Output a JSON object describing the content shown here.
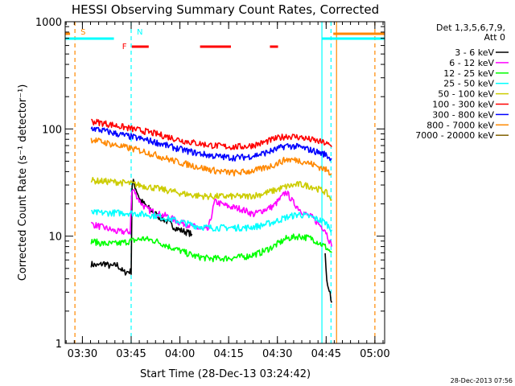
{
  "chart_data": {
    "type": "line",
    "title": "HESSI Observing Summary Count Rates, Corrected",
    "xlabel": "Start Time (28-Dec-13 03:24:42)",
    "ylabel": "Corrected Count Rate (s⁻¹ detector⁻¹)",
    "timestamp": "28-Dec-2013 07:56",
    "x_unit": "minutes after 03:24:42",
    "xlim": [
      0,
      98.3
    ],
    "ylim": [
      1,
      1000
    ],
    "yscale": "log",
    "x_ticks": [
      {
        "label": "03:30",
        "value": 5.3
      },
      {
        "label": "03:45",
        "value": 20.3
      },
      {
        "label": "04:00",
        "value": 35.3
      },
      {
        "label": "04:15",
        "value": 50.3
      },
      {
        "label": "04:30",
        "value": 65.3
      },
      {
        "label": "04:45",
        "value": 80.3
      },
      {
        "label": "05:00",
        "value": 95.3
      }
    ],
    "y_ticks": [
      {
        "label": "1",
        "value": 1
      },
      {
        "label": "10",
        "value": 10
      },
      {
        "label": "100",
        "value": 100
      },
      {
        "label": "1000",
        "value": 1000
      }
    ],
    "legend": {
      "position": "top-right",
      "header": [
        "Det 1,3,5,6,7,9,",
        "Att 0"
      ],
      "entries": [
        {
          "label": "3 - 6 keV",
          "color": "#000000"
        },
        {
          "label": "6 - 12 keV",
          "color": "#ff00ff"
        },
        {
          "label": "12 - 25 keV",
          "color": "#00ff00"
        },
        {
          "label": "25 - 50 keV",
          "color": "#00ffff"
        },
        {
          "label": "50 - 100 keV",
          "color": "#cccc00"
        },
        {
          "label": "100 - 300 keV",
          "color": "#ff0000"
        },
        {
          "label": "300 - 800 keV",
          "color": "#0000ff"
        },
        {
          "label": "800 - 7000 keV",
          "color": "#ff8800"
        },
        {
          "label": "7000 - 20000 keV",
          "color": "#806000"
        }
      ]
    },
    "series": [
      {
        "name": "3 - 6 keV",
        "color": "#000000",
        "x": [
          8,
          10,
          12,
          14,
          16,
          18,
          20.3,
          20.6,
          21,
          23,
          25,
          27,
          29,
          31,
          33,
          35,
          37,
          39
        ],
        "y": [
          5.5,
          5.3,
          5.6,
          5.2,
          5.4,
          4.6,
          4.7,
          30,
          32,
          22,
          19,
          17,
          15,
          14,
          12.5,
          11.5,
          11,
          10.5
        ]
      },
      {
        "name": "3 - 6 keV (late)",
        "color": "#000000",
        "x": [
          80,
          80.5,
          81,
          81.5,
          82
        ],
        "y": [
          6.5,
          3.8,
          3.4,
          3.0,
          2.4
        ]
      },
      {
        "name": "6 - 12 keV",
        "color": "#ff00ff",
        "x": [
          8,
          10,
          12,
          14,
          16,
          18,
          20,
          20.5,
          21,
          23,
          25,
          27,
          29,
          31,
          33,
          35,
          37,
          39,
          42,
          44,
          46,
          48,
          50,
          52,
          54,
          56,
          58,
          60,
          62,
          64,
          66,
          68,
          70,
          72,
          74,
          76,
          78,
          80,
          82
        ],
        "y": [
          13,
          12.5,
          12,
          11.5,
          11,
          11,
          11,
          26,
          27,
          21,
          18,
          17,
          16,
          15.5,
          14.5,
          13.5,
          13,
          12.5,
          11.5,
          11.5,
          21,
          20,
          19,
          18.5,
          18,
          17,
          16,
          17,
          18,
          19,
          22,
          26,
          21,
          18,
          16,
          15,
          13,
          11.5,
          8
        ]
      },
      {
        "name": "12 - 25 keV",
        "color": "#00ff00",
        "x": [
          8,
          12,
          16,
          20,
          24,
          28,
          32,
          36,
          40,
          44,
          48,
          52,
          56,
          60,
          64,
          68,
          72,
          76,
          80,
          82
        ],
        "y": [
          9,
          8.5,
          8.5,
          9,
          9.5,
          9,
          8,
          7.2,
          6.5,
          6.2,
          6.2,
          6.3,
          6.5,
          7,
          8,
          9.5,
          10,
          9.5,
          8,
          7
        ]
      },
      {
        "name": "25 - 50 keV",
        "color": "#00ffff",
        "x": [
          8,
          12,
          16,
          20,
          24,
          28,
          32,
          36,
          40,
          44,
          48,
          52,
          56,
          60,
          64,
          68,
          72,
          76,
          80,
          82
        ],
        "y": [
          16.5,
          16.5,
          16.5,
          16.5,
          16,
          15.5,
          14.5,
          13.5,
          12.5,
          12,
          12,
          12,
          12,
          12.5,
          13.5,
          15,
          16,
          15,
          13.5,
          11.5
        ]
      },
      {
        "name": "50 - 100 keV",
        "color": "#cccc00",
        "x": [
          8,
          12,
          16,
          20,
          24,
          28,
          32,
          36,
          40,
          44,
          48,
          52,
          56,
          60,
          64,
          68,
          72,
          76,
          80,
          82
        ],
        "y": [
          33,
          32.5,
          32,
          31,
          29.5,
          28,
          26.5,
          25,
          24,
          23.5,
          23.5,
          23.5,
          23.5,
          24.5,
          26.5,
          29,
          30.5,
          29,
          26,
          22
        ]
      },
      {
        "name": "100 - 300 keV",
        "color": "#ff0000",
        "x": [
          8,
          12,
          16,
          20,
          24,
          28,
          32,
          36,
          40,
          44,
          48,
          52,
          56,
          60,
          64,
          68,
          72,
          76,
          80,
          82
        ],
        "y": [
          118,
          113,
          107,
          101,
          96,
          90,
          84,
          78,
          74,
          71,
          69,
          68,
          69,
          73,
          80,
          86,
          84,
          79,
          74,
          68
        ]
      },
      {
        "name": "300 - 800 keV",
        "color": "#0000ff",
        "x": [
          8,
          12,
          16,
          20,
          24,
          28,
          32,
          36,
          40,
          44,
          48,
          52,
          56,
          60,
          64,
          68,
          72,
          76,
          80,
          82
        ],
        "y": [
          102,
          96,
          90,
          85,
          80,
          75,
          69,
          64,
          60,
          57,
          55,
          54,
          55,
          58,
          63,
          70,
          68,
          63,
          58,
          52
        ]
      },
      {
        "name": "800 - 7000 keV",
        "color": "#ff8800",
        "x": [
          8,
          12,
          16,
          20,
          24,
          28,
          32,
          36,
          40,
          44,
          48,
          52,
          56,
          60,
          64,
          68,
          72,
          76,
          80,
          82
        ],
        "y": [
          80,
          75,
          70,
          66,
          62,
          57,
          52,
          48,
          45,
          42,
          40,
          39,
          40,
          42,
          46,
          52,
          51,
          47,
          42,
          38
        ]
      }
    ],
    "bars": {
      "S": {
        "label": "S",
        "color": "#ff8800",
        "value": 1,
        "segments": [
          [
            0,
            1.5
          ],
          [
            82.5,
            98.3
          ]
        ]
      },
      "N": {
        "label": "N",
        "color": "#00ffff",
        "value": 1,
        "segments": [
          [
            0,
            15.0
          ],
          [
            79.0,
            98.3
          ]
        ]
      },
      "F": {
        "label": "F",
        "color": "#ff0000",
        "value": 1,
        "segments": [
          [
            20.5,
            25.7
          ],
          [
            41.5,
            51.0
          ],
          [
            63.0,
            65.5
          ]
        ]
      }
    },
    "markers": [
      {
        "label": "S",
        "x": 3.0,
        "color": "#ff8800",
        "style": "dashed"
      },
      {
        "label": "N",
        "x": 20.3,
        "color": "#00ffff",
        "style": "dashed"
      },
      {
        "label": "",
        "x": 79.0,
        "color": "#00ffff",
        "style": "solid"
      },
      {
        "label": "",
        "x": 81.8,
        "color": "#00ffff",
        "style": "dashed"
      },
      {
        "label": "",
        "x": 83.5,
        "color": "#ff8800",
        "style": "solid"
      },
      {
        "label": "",
        "x": 95.3,
        "color": "#ff8800",
        "style": "dashed"
      }
    ]
  }
}
